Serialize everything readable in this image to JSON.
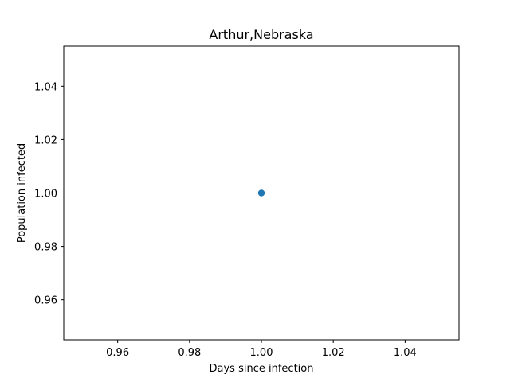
{
  "chart_data": {
    "type": "scatter",
    "title": "Arthur,Nebraska",
    "xlabel": "Days since infection",
    "ylabel": "Population infected",
    "xlim": [
      0.945,
      1.055
    ],
    "ylim": [
      0.945,
      1.055
    ],
    "xticks": [
      "0.96",
      "0.98",
      "1.00",
      "1.02",
      "1.04"
    ],
    "yticks": [
      "0.96",
      "0.98",
      "1.00",
      "1.02",
      "1.04"
    ],
    "grid": false,
    "series": [
      {
        "color": "#1f77b4",
        "points": [
          {
            "x": 1.0,
            "y": 1.0
          }
        ]
      }
    ]
  }
}
